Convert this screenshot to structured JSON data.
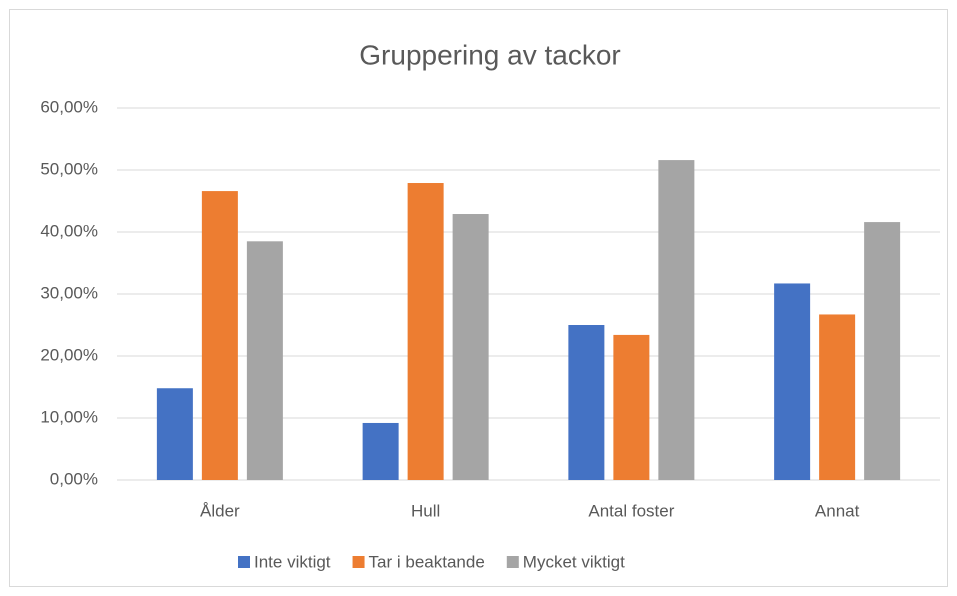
{
  "chart_data": {
    "type": "bar",
    "title": "Gruppering av tackor",
    "categories": [
      "Ålder",
      "Hull",
      "Antal foster",
      "Annat"
    ],
    "series": [
      {
        "name": "Inte viktigt",
        "color": "#4472c4",
        "values": [
          14.8,
          9.2,
          25.0,
          31.7
        ]
      },
      {
        "name": "Tar i beaktande",
        "color": "#ed7d31",
        "values": [
          46.6,
          47.9,
          23.4,
          26.7
        ]
      },
      {
        "name": "Mycket viktigt",
        "color": "#a5a5a5",
        "values": [
          38.5,
          42.9,
          51.6,
          41.6
        ]
      }
    ],
    "ylim": [
      0,
      60
    ],
    "yticks": [
      {
        "value": 0,
        "label": "0,00%"
      },
      {
        "value": 10,
        "label": "10,00%"
      },
      {
        "value": 20,
        "label": "20,00%"
      },
      {
        "value": 30,
        "label": "30,00%"
      },
      {
        "value": 40,
        "label": "40,00%"
      },
      {
        "value": 50,
        "label": "50,00%"
      },
      {
        "value": 60,
        "label": "60,00%"
      }
    ],
    "grid": true,
    "legend": "bottom"
  }
}
